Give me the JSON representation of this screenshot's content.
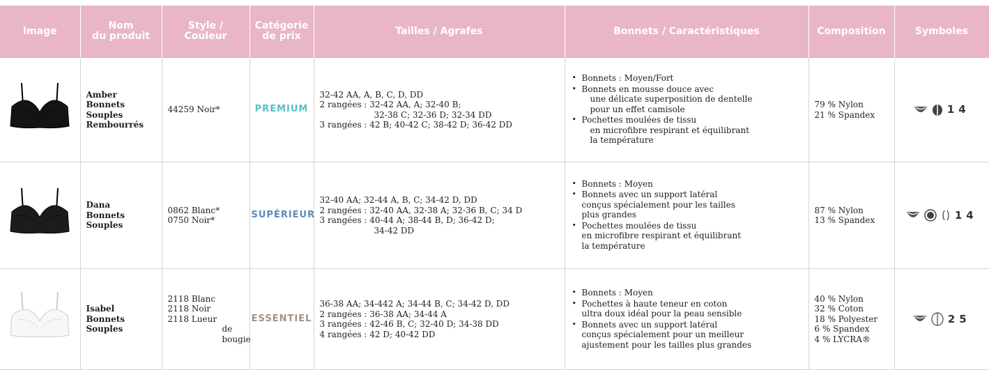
{
  "header": [
    [
      "Image"
    ],
    [
      "Nom",
      "du produit"
    ],
    [
      "Style /",
      "Couleur"
    ],
    [
      "Catégorie",
      "de prix"
    ],
    [
      "Tailles / Agrafes"
    ],
    [
      "Bonnets / Caractéristiques"
    ],
    [
      "Composition"
    ],
    [
      "Symboles"
    ]
  ],
  "rows": [
    {
      "name": [
        "Amber",
        "Bonnets",
        "Souples",
        "Rembourrés"
      ],
      "style": [
        "44259  Noir*"
      ],
      "category": "PREMIUM",
      "sizes": [
        "32-42 AA, A, B, C, D, DD",
        [
          "2 rangées : 32-42 AA, A; 32-40 B;",
          "32-38 C; 32-36 D; 32-34 DD"
        ],
        "3 rangées : 42 B; 40-42 C; 38-42 D; 36-42 DD"
      ],
      "features": [
        [
          "Bonnets : Moyen/Fort"
        ],
        [
          "Bonnets en mousse douce avec",
          "une délicate superposition de dentelle",
          "pour un effet camisole"
        ],
        [
          "Pochettes moulées de tissu",
          "en microfibre respirant et équilibrant",
          "la température"
        ]
      ],
      "composition": [
        "79 % Nylon",
        "21 % Spandex"
      ],
      "symbols": "14"
    },
    {
      "name": [
        "Dana",
        "Bonnets",
        "Souples"
      ],
      "style": [
        "0862  Blanc*",
        "0750  Noir*"
      ],
      "category": "SUPÉRIEUR",
      "sizes": [
        "32-40 AA; 32-44 A, B, C; 34-42 D, DD",
        "2 rangées : 32-40 AA, 32-38 A; 32-36 B, C; 34 D",
        [
          "3 rangées : 40-44 A; 38-44 B, D; 36-42 D;",
          "34-42 DD"
        ]
      ],
      "features": [
        [
          "Bonnets : Moyen"
        ],
        [
          "Bonnets avec un support latéral",
          "conçus spécialement pour les tailles",
          "plus grandes"
        ],
        [
          "Pochettes moulées de tissu",
          "en microfibre respirant et équilibrant",
          "la température"
        ]
      ],
      "composition": [
        "87 % Nylon",
        "13 % Spandex"
      ],
      "symbols": "14"
    },
    {
      "name": [
        "Isabel",
        "Bonnets",
        "Souples"
      ],
      "style": [
        "2118  Blanc",
        "2118  Noir",
        [
          "2118  Lueur",
          "de bougie"
        ]
      ],
      "category": "ESSENTIEL",
      "sizes": [
        "36-38 AA; 34-442 A; 34-44 B, C; 34-42 D, DD",
        "2 rangées : 36-38 AA; 34-44 A",
        "3 rangées : 42-46 B, C; 32-40 D; 34-38 DD",
        "4 rangées : 42 D; 40-42 DD"
      ],
      "features": [
        [
          "Bonnets : Moyen"
        ],
        [
          "Pochettes à haute teneur en coton",
          "ultra doux idéal pour la peau sensible"
        ],
        [
          "Bonnets avec un support latéral",
          "conçus spécialement pour un meilleur",
          "ajustement pour les tailles plus grandes"
        ]
      ],
      "composition": [
        "40 % Nylon",
        "32 % Coton",
        "18 % Polyester",
        "6 % Spandex",
        "4 % LYCRA®"
      ],
      "symbols": "25"
    }
  ]
}
